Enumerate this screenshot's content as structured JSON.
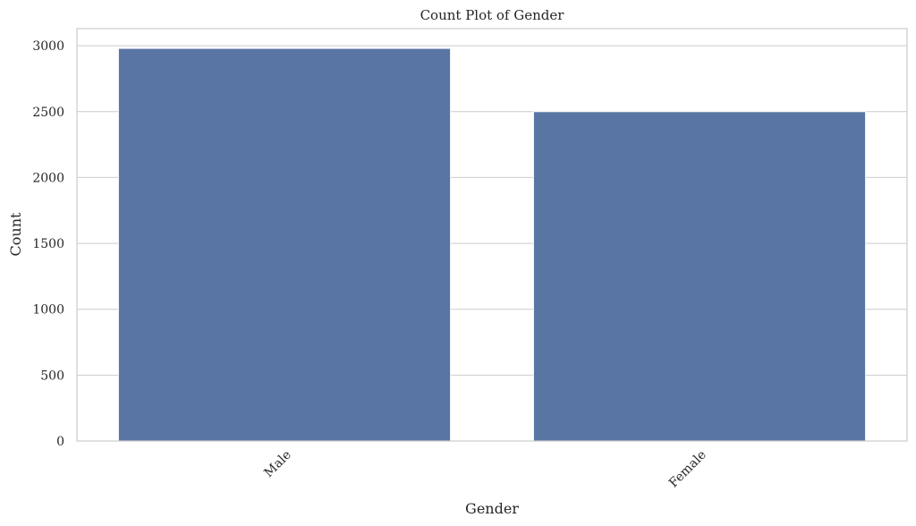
{
  "chart_data": {
    "type": "bar",
    "title": "Count Plot of Gender",
    "xlabel": "Gender",
    "ylabel": "Count",
    "categories": [
      "Male",
      "Female"
    ],
    "values": [
      2980,
      2500
    ],
    "ylim": [
      0,
      3130
    ],
    "yticks": [
      0,
      500,
      1000,
      1500,
      2000,
      2500,
      3000
    ],
    "grid": "horizontal",
    "bar_color": "#5975a4",
    "grid_color": "#cccccc",
    "background": "#ffffff"
  }
}
